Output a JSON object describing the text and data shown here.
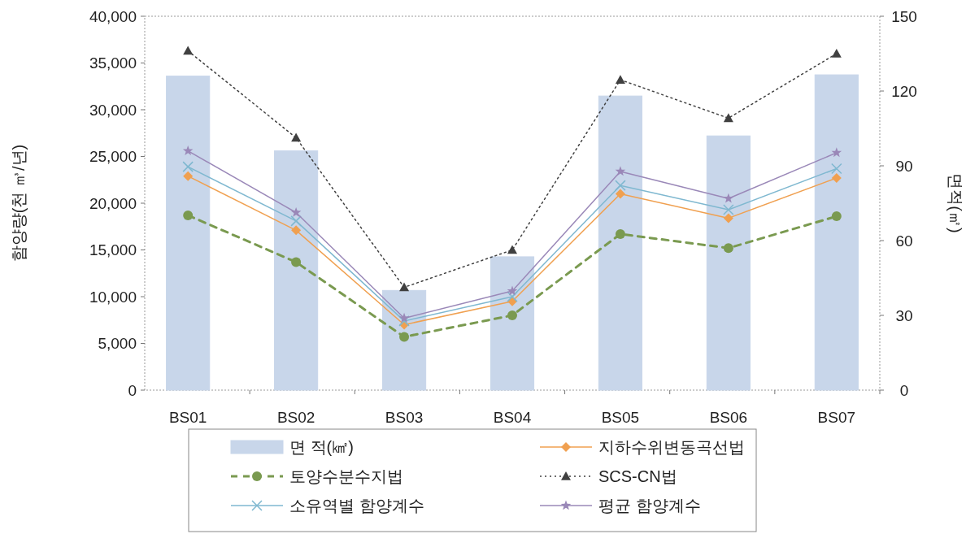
{
  "chart_data": {
    "type": "line",
    "ylabel": "함양량(천 ㎥/년)",
    "y2label": "면적(㎡)",
    "categories": [
      "BS01",
      "BS02",
      "BS03",
      "BS04",
      "BS05",
      "BS06",
      "BS07"
    ],
    "series": [
      {
        "name": "면 적(㎢)",
        "type": "bar",
        "axis": "y2",
        "color": "#c8d6ea",
        "values": [
          126,
          96,
          40,
          53.5,
          118,
          102,
          126.5
        ]
      },
      {
        "name": "지하수위변동곡선법",
        "color": "#f0a050",
        "marker": "diamond",
        "line_style": "solid",
        "values": [
          22900,
          17100,
          7000,
          9500,
          21000,
          18400,
          22700
        ]
      },
      {
        "name": "토양수분수지법",
        "color": "#7a9a50",
        "marker": "circle",
        "line_style": "dashed",
        "values": [
          18700,
          13700,
          5700,
          8000,
          16700,
          15200,
          18600
        ]
      },
      {
        "name": "SCS-CN법",
        "color": "#404040",
        "marker": "triangle",
        "line_style": "dotted",
        "values": [
          36300,
          27000,
          11000,
          15000,
          33200,
          29100,
          36000
        ]
      },
      {
        "name": "소유역별 함양계수",
        "color": "#7fb8d0",
        "marker": "cross",
        "line_style": "solid",
        "values": [
          23900,
          18100,
          7400,
          10000,
          21900,
          19300,
          23700
        ]
      },
      {
        "name": "평균 함양계수",
        "color": "#9a88b8",
        "marker": "star",
        "line_style": "solid",
        "values": [
          25600,
          19000,
          7700,
          10600,
          23400,
          20500,
          25400
        ]
      }
    ],
    "ylim": [
      0,
      40000
    ],
    "yticks": [
      {
        "value": 0,
        "label": "0"
      },
      {
        "value": 5000,
        "label": "5,000"
      },
      {
        "value": 10000,
        "label": "10,000"
      },
      {
        "value": 15000,
        "label": "15,000"
      },
      {
        "value": 20000,
        "label": "20,000"
      },
      {
        "value": 25000,
        "label": "25,000"
      },
      {
        "value": 30000,
        "label": "30,000"
      },
      {
        "value": 35000,
        "label": "35,000"
      },
      {
        "value": 40000,
        "label": "40,000"
      }
    ],
    "y2lim": [
      0,
      150
    ],
    "y2ticks": [
      0,
      30,
      60,
      90,
      120,
      150
    ],
    "legend": "bottom",
    "grid": false
  }
}
